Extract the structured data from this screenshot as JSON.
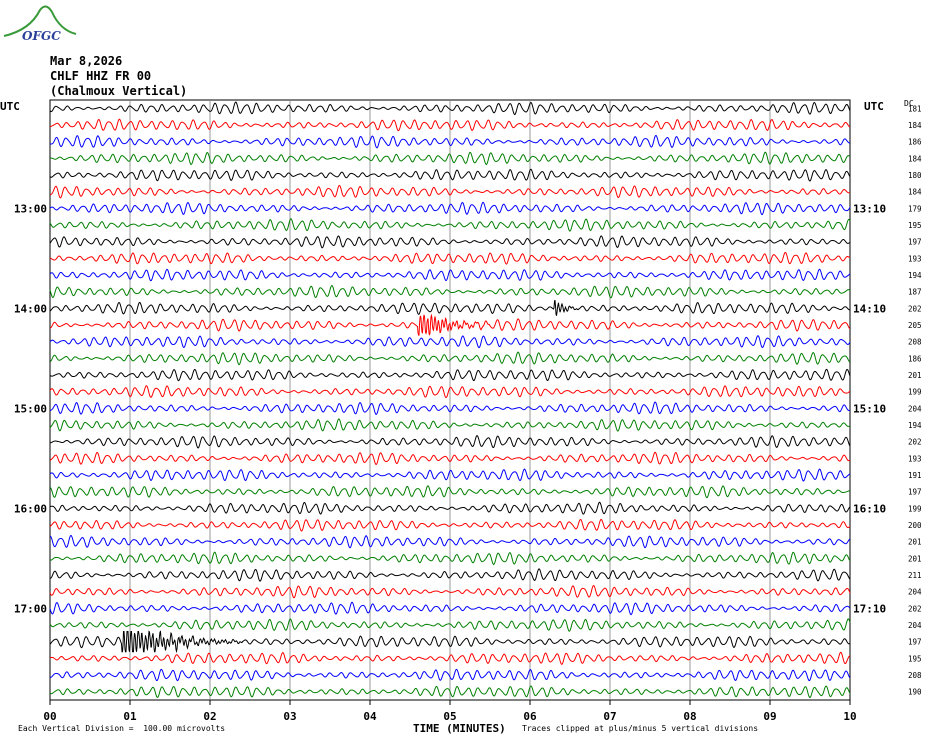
{
  "logo": {
    "text": "OFGC",
    "color": "#2a3f9a",
    "swoosh_color": "#3a9a3a"
  },
  "header": {
    "date": "Mar 8,2026",
    "station": "CHLF HHZ FR 00",
    "site": "(Chalmoux Vertical)"
  },
  "utc_left": "UTC",
  "utc_right": "UTC",
  "dc_label": "DC",
  "footer": {
    "division": "Each Vertical Division =  100.00 microvolts",
    "xlabel": "TIME (MINUTES)",
    "clip_note": "Traces clipped at plus/minus 5 vertical divisions"
  },
  "colors": {
    "cycle": [
      "#000000",
      "#ff0000",
      "#0000ff",
      "#008000"
    ],
    "grid": "#808080"
  },
  "chart_data": {
    "type": "line",
    "title": "",
    "xlabel": "TIME (MINUTES)",
    "x_ticks": [
      "00",
      "01",
      "02",
      "03",
      "04",
      "05",
      "06",
      "07",
      "08",
      "09",
      "10"
    ],
    "xlim": [
      0,
      10
    ],
    "rows": 36,
    "left_time_labels": [
      {
        "row": 6,
        "label": "13:00"
      },
      {
        "row": 12,
        "label": "14:00"
      },
      {
        "row": 18,
        "label": "15:00"
      },
      {
        "row": 24,
        "label": "16:00"
      },
      {
        "row": 30,
        "label": "17:00"
      }
    ],
    "right_time_labels": [
      {
        "row": 6,
        "label": "13:10"
      },
      {
        "row": 12,
        "label": "14:10"
      },
      {
        "row": 18,
        "label": "15:10"
      },
      {
        "row": 24,
        "label": "16:10"
      },
      {
        "row": 30,
        "label": "17:10"
      }
    ],
    "dc_offsets": [
      181,
      184,
      186,
      184,
      180,
      184,
      179,
      195,
      197,
      193,
      194,
      187,
      202,
      205,
      208,
      186,
      201,
      199,
      204,
      194,
      202,
      193,
      191,
      197,
      199,
      200,
      201,
      201,
      211,
      204,
      202,
      204,
      197,
      195,
      208,
      190
    ],
    "events": [
      {
        "row": 13,
        "start_min": 4.6,
        "end_min": 5.5,
        "amplitude": 2.2
      },
      {
        "row": 12,
        "start_min": 6.3,
        "end_min": 6.6,
        "amplitude": 1.5
      },
      {
        "row": 32,
        "start_min": 0.9,
        "end_min": 2.4,
        "amplitude": 2.5
      }
    ]
  }
}
